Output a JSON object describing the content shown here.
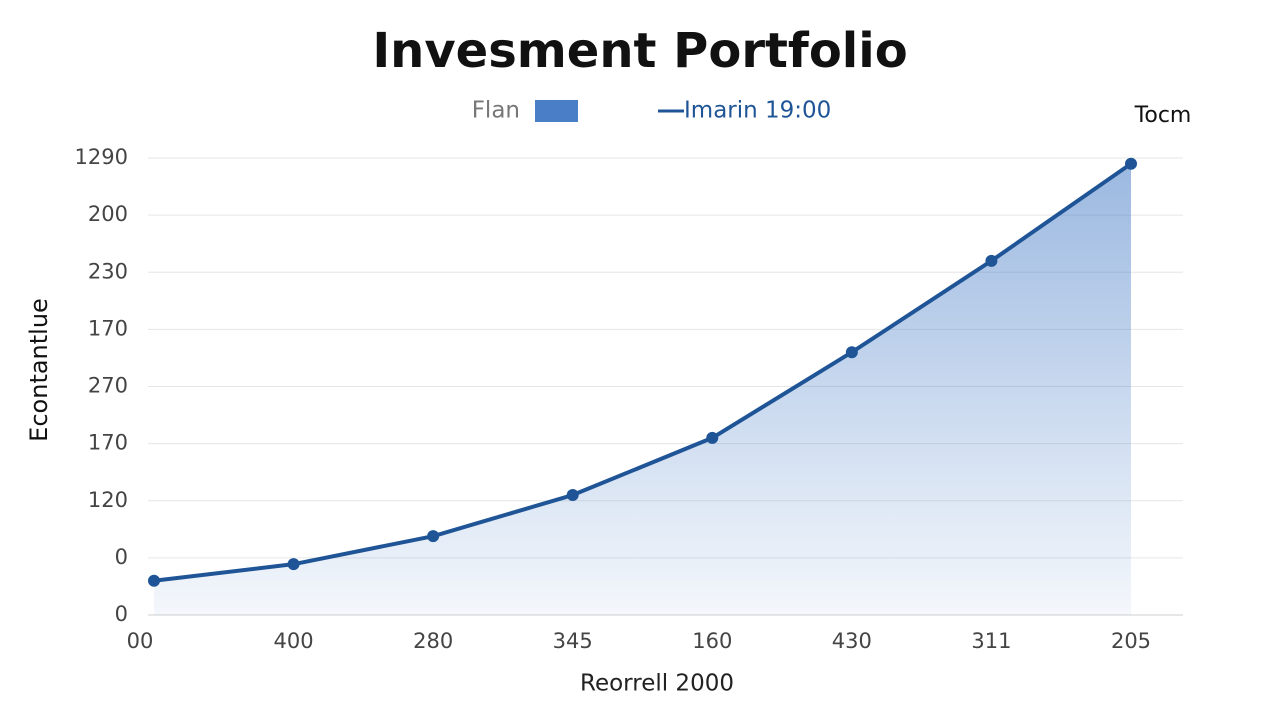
{
  "chart_data": {
    "type": "area-line",
    "title": "Invesment Portfolio",
    "annotation": "Tocm",
    "y_label": "Econtantlue",
    "x_label": "Reorrell 2000",
    "categories": [
      "00",
      "400",
      "280",
      "345",
      "160",
      "430",
      "311",
      "205"
    ],
    "series": [
      {
        "name": "Flan",
        "color": "#4a7fc8",
        "type": "area",
        "values": [
          0.6,
          0.89,
          1.38,
          2.1,
          3.1,
          4.6,
          6.2,
          7.9
        ]
      },
      {
        "name": "Imarin 19:00",
        "color": "#1f5596",
        "type": "line",
        "values": [
          0.6,
          0.89,
          1.38,
          2.1,
          3.1,
          4.6,
          6.2,
          7.9
        ]
      }
    ],
    "ylim": [
      0,
      8
    ],
    "yticks": [
      {
        "value": 0,
        "label": "0"
      },
      {
        "value": 1,
        "label": "0"
      },
      {
        "value": 2,
        "label": "120"
      },
      {
        "value": 3,
        "label": "170"
      },
      {
        "value": 4,
        "label": "270"
      },
      {
        "value": 5,
        "label": "170"
      },
      {
        "value": 6,
        "label": "230"
      },
      {
        "value": 7,
        "label": "200"
      },
      {
        "value": 8,
        "label": "1290"
      }
    ],
    "grid": true
  }
}
